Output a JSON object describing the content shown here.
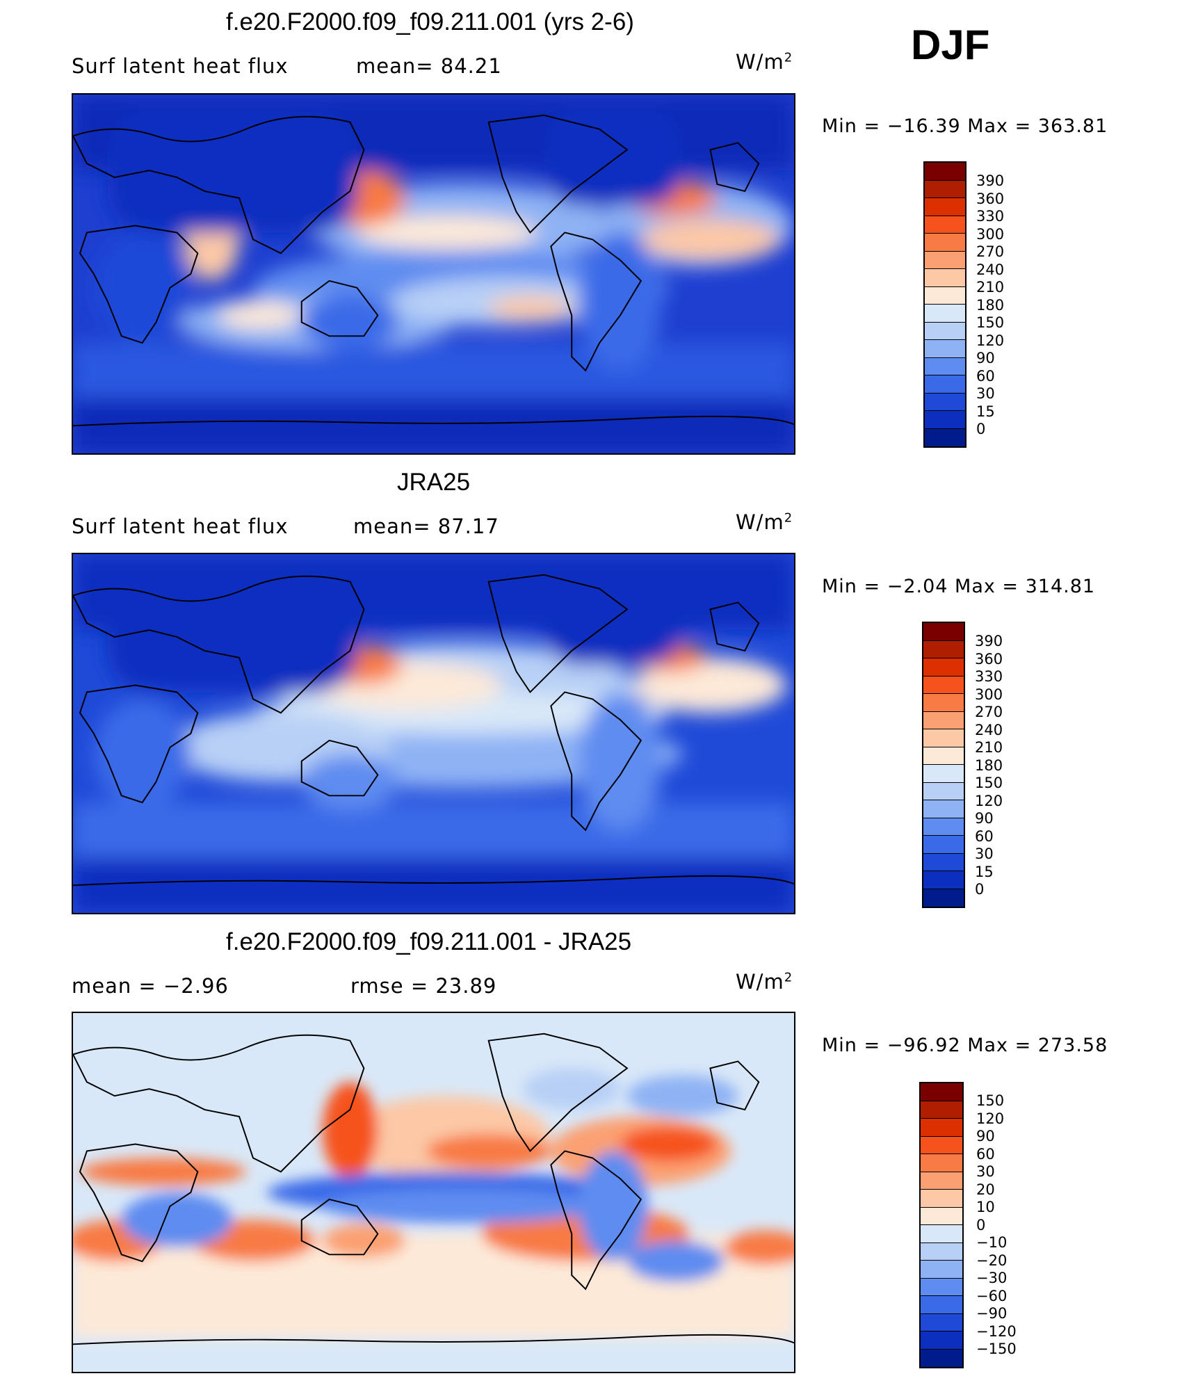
{
  "season": "DJF",
  "units": "W/m",
  "units_exp": "2",
  "panels": [
    {
      "title": "f.e20.F2000.f09_f09.211.001 (yrs 2-6)",
      "left_text": "Surf  latent  heat  flux",
      "mid_text": "mean=   84.21",
      "stats": "Min  =  −16.39  Max  =  363.81"
    },
    {
      "title": "JRA25",
      "left_text": "Surf  latent  heat  flux",
      "mid_text": "mean=   87.17",
      "stats": "Min  =    −2.04  Max  =  314.81"
    },
    {
      "title": "f.e20.F2000.f09_f09.211.001 - JRA25",
      "left_text": "mean  =     −2.96",
      "mid_text": "rmse  =     23.89",
      "stats": "Min  =  −96.92  Max  =  273.58"
    }
  ],
  "colorbars": {
    "flux": {
      "labels": [
        "390",
        "360",
        "330",
        "300",
        "270",
        "240",
        "210",
        "180",
        "150",
        "120",
        "90",
        "60",
        "30",
        "15",
        "0"
      ],
      "colors": [
        "#7a0000",
        "#b01e00",
        "#dc3000",
        "#f6521e",
        "#f87a44",
        "#fba072",
        "#fcc8a6",
        "#fde9d8",
        "#d9e8f8",
        "#b8d0f6",
        "#8fb2f4",
        "#5f8cf0",
        "#3a6ae8",
        "#1f4ad8",
        "#0c2fc0",
        "#001c8c"
      ]
    },
    "diff": {
      "labels": [
        "150",
        "120",
        "90",
        "60",
        "30",
        "20",
        "10",
        "0",
        "−10",
        "−20",
        "−30",
        "−60",
        "−90",
        "−120",
        "−150"
      ],
      "colors": [
        "#7a0000",
        "#b01e00",
        "#dc3000",
        "#f6521e",
        "#f87a44",
        "#fba072",
        "#fcc8a6",
        "#fde9d8",
        "#d9e8f8",
        "#b8d0f6",
        "#8fb2f4",
        "#5f8cf0",
        "#3a6ae8",
        "#1f4ad8",
        "#0c2fc0",
        "#001c8c"
      ]
    }
  }
}
